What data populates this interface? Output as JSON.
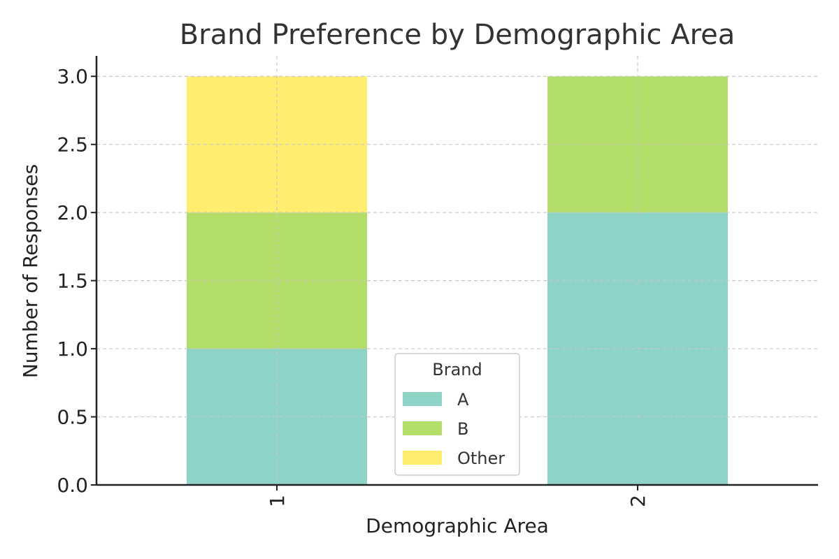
{
  "chart_data": {
    "type": "bar",
    "stacked": true,
    "title": "Brand Preference by Demographic Area",
    "xlabel": "Demographic Area",
    "ylabel": "Number of Responses",
    "categories": [
      "1",
      "2"
    ],
    "series": [
      {
        "name": "A",
        "values": [
          1,
          2
        ],
        "color": "#8dd3c7"
      },
      {
        "name": "B",
        "values": [
          1,
          1
        ],
        "color": "#b3de69"
      },
      {
        "name": "Other",
        "values": [
          1,
          0
        ],
        "color": "#ffed6f"
      }
    ],
    "ylim": [
      0,
      3.15
    ],
    "yticks": [
      "0.0",
      "0.5",
      "1.0",
      "1.5",
      "2.0",
      "2.5",
      "3.0"
    ],
    "grid": true,
    "legend": {
      "title": "Brand",
      "placement": "lower-center"
    }
  }
}
